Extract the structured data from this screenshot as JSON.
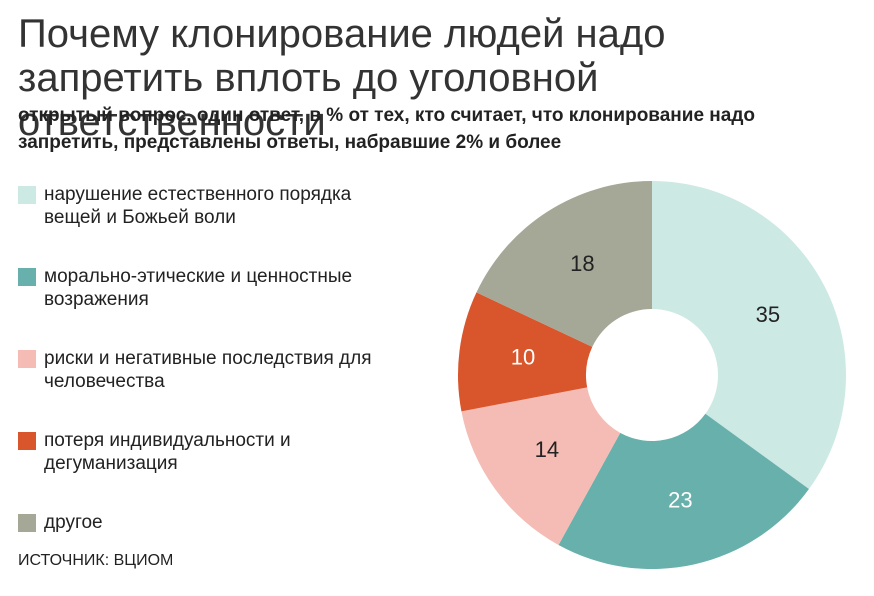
{
  "chart_data": {
    "type": "donut",
    "title": "Почему клонирование людей надо запретить вплоть до уголовной ответственности",
    "subtitle": "открытый вопрос, один ответ, в % от тех, кто считает, что клонирование надо запретить, представлены ответы, набравшие 2% и более",
    "categories": [
      "нарушение естественного порядка вещей и Божьей воли",
      "морально-этические и ценностные возражения",
      "риски и негативные последствия для человечества",
      "потеря индивидуальности и дегуманизация",
      "другое"
    ],
    "values": [
      35,
      23,
      14,
      10,
      18
    ],
    "colors": [
      "#cde9e4",
      "#68b0ab",
      "#f4bcb5",
      "#d9552b",
      "#a5a896"
    ],
    "source": "ИСТОЧНИК: ВЦИОМ"
  }
}
